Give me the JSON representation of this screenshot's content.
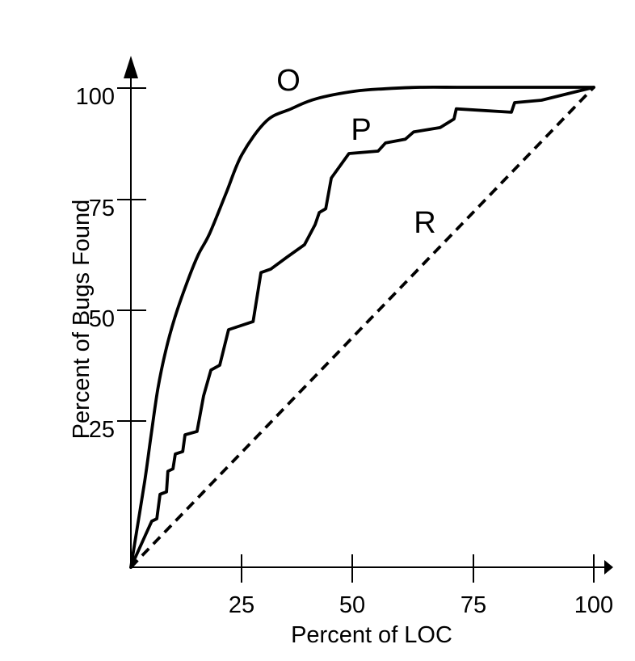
{
  "figure": {
    "background": "#ffffff",
    "ink": "#000000"
  },
  "chart_data": {
    "type": "line",
    "title": "",
    "xlabel": "Percent of LOC",
    "ylabel": "Percent of Bugs Found",
    "xlim": [
      0,
      100
    ],
    "ylim": [
      0,
      100
    ],
    "x_ticks": [
      25,
      50,
      75,
      100
    ],
    "y_ticks": [
      25,
      50,
      75,
      100
    ],
    "grid": false,
    "legend": "inline curve labels",
    "series": [
      {
        "name": "optimal-curve",
        "label": "O",
        "line": "solid",
        "shape": "smooth",
        "points": [
          [
            0,
            0
          ],
          [
            1.5,
            9
          ],
          [
            3,
            18
          ],
          [
            4.3,
            27
          ],
          [
            5.8,
            37
          ],
          [
            7.5,
            45
          ],
          [
            9.5,
            52
          ],
          [
            12,
            59
          ],
          [
            14.5,
            65
          ],
          [
            17,
            69.5
          ],
          [
            20.6,
            78
          ],
          [
            24,
            86
          ],
          [
            29.3,
            93
          ],
          [
            34.6,
            95.5
          ],
          [
            40,
            97.6
          ],
          [
            48.5,
            99.2
          ],
          [
            55,
            99.7
          ],
          [
            62.5,
            100
          ],
          [
            71,
            100
          ],
          [
            80,
            100
          ],
          [
            90,
            100
          ],
          [
            100,
            100
          ]
        ]
      },
      {
        "name": "practical-curve",
        "label": "P",
        "line": "solid",
        "shape": "jagged",
        "points": [
          [
            0,
            0
          ],
          [
            4.5,
            9.6
          ],
          [
            5.6,
            10.1
          ],
          [
            6.3,
            15.2
          ],
          [
            7.7,
            15.7
          ],
          [
            8,
            20
          ],
          [
            9.1,
            20.5
          ],
          [
            9.6,
            23.6
          ],
          [
            11.2,
            24.1
          ],
          [
            11.7,
            27.6
          ],
          [
            14.3,
            28.3
          ],
          [
            15.7,
            35.7
          ],
          [
            17.3,
            41.1
          ],
          [
            19.2,
            42.1
          ],
          [
            21.1,
            49.5
          ],
          [
            26.4,
            51.2
          ],
          [
            28.1,
            61.4
          ],
          [
            30.2,
            62.1
          ],
          [
            33.7,
            64.6
          ],
          [
            37.5,
            67.2
          ],
          [
            39.8,
            71.4
          ],
          [
            40.7,
            73.9
          ],
          [
            42.1,
            74.7
          ],
          [
            43.3,
            81.1
          ],
          [
            47.1,
            86.2
          ],
          [
            53.4,
            86.7
          ],
          [
            55,
            88.4
          ],
          [
            59.3,
            89.2
          ],
          [
            61.1,
            90.7
          ],
          [
            66.8,
            91.6
          ],
          [
            69.8,
            93.4
          ],
          [
            70.3,
            95.5
          ],
          [
            82.2,
            94.8
          ],
          [
            82.9,
            96.8
          ],
          [
            88.7,
            97.3
          ],
          [
            100,
            100
          ]
        ]
      },
      {
        "name": "random-curve",
        "label": "R",
        "line": "dashed",
        "shape": "straight",
        "points": [
          [
            0,
            0
          ],
          [
            100,
            100
          ]
        ]
      }
    ]
  }
}
